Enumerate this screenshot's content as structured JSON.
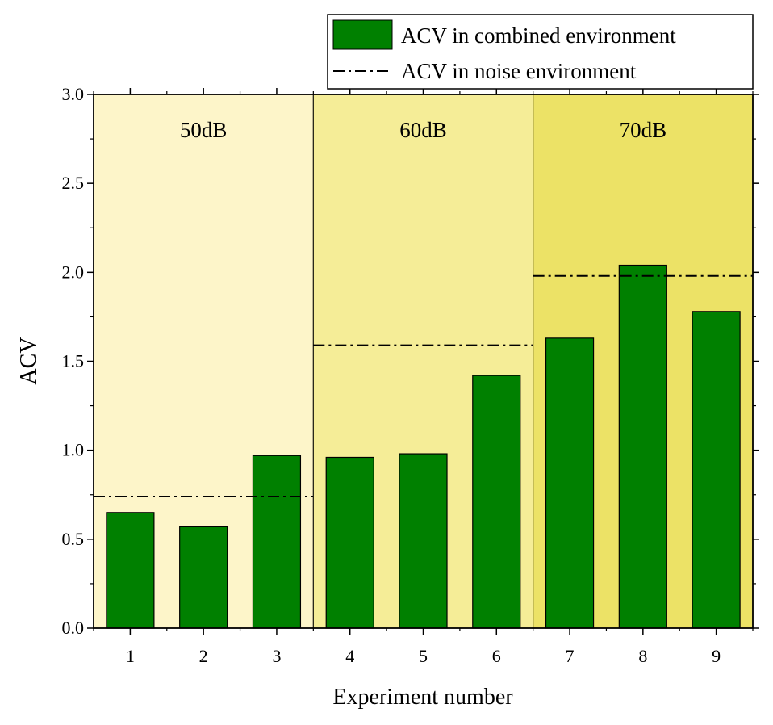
{
  "chart_data": {
    "type": "bar",
    "xlabel": "Experiment number",
    "ylabel": "ACV",
    "ylim": [
      0,
      3.0
    ],
    "yticks": [
      "0.0",
      "0.5",
      "1.0",
      "1.5",
      "2.0",
      "2.5",
      "3.0"
    ],
    "categories": [
      "1",
      "2",
      "3",
      "4",
      "5",
      "6",
      "7",
      "8",
      "9"
    ],
    "series": [
      {
        "name": "ACV in combined environment",
        "type": "bar",
        "color": "#008000",
        "values": [
          0.65,
          0.57,
          0.97,
          0.96,
          0.98,
          1.42,
          1.63,
          2.04,
          1.78
        ]
      },
      {
        "name": "ACV in noise environment",
        "type": "dash-dot-line",
        "color": "#000000",
        "segments": [
          {
            "from": "1",
            "to": "3",
            "value": 0.74
          },
          {
            "from": "4",
            "to": "6",
            "value": 1.59
          },
          {
            "from": "7",
            "to": "9",
            "value": 1.98
          }
        ]
      }
    ],
    "regions": [
      {
        "label": "50dB",
        "categories": [
          "1",
          "2",
          "3"
        ],
        "color": "#fdf5c9"
      },
      {
        "label": "60dB",
        "categories": [
          "4",
          "5",
          "6"
        ],
        "color": "#f5ed97"
      },
      {
        "label": "70dB",
        "categories": [
          "7",
          "8",
          "9"
        ],
        "color": "#ece266"
      }
    ],
    "legend": {
      "position": "top-right",
      "entries": [
        "ACV in combined environment",
        "ACV in noise environment"
      ]
    }
  }
}
